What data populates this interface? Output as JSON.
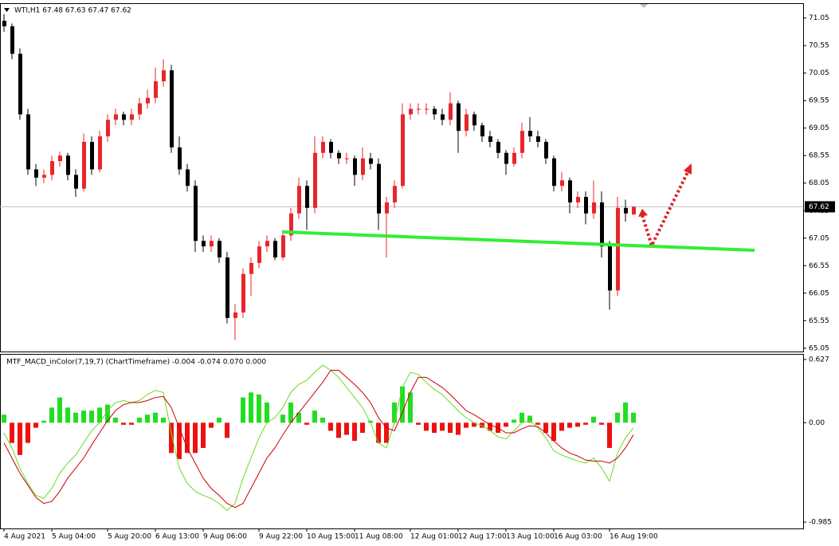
{
  "chart_data": [
    {
      "type": "candlestick",
      "title": "WTI,H1  67.48 67.63 67.47 67.62",
      "bull_color": "#e8262a",
      "bear_color": "#000000",
      "grid": false,
      "ylim": [
        64.99,
        71.32
      ],
      "yticks": [
        65.05,
        65.55,
        66.05,
        66.55,
        67.05,
        67.55,
        68.05,
        68.55,
        69.05,
        69.55,
        70.05,
        70.55,
        71.05
      ],
      "last_price": 67.62,
      "categories": [
        "4 Aug 2021",
        null,
        null,
        null,
        null,
        null,
        "5 Aug 04:00",
        null,
        null,
        null,
        null,
        null,
        null,
        "5 Aug 20:00",
        null,
        null,
        null,
        null,
        null,
        "6 Aug 13:00",
        null,
        null,
        null,
        null,
        null,
        "9 Aug 06:00",
        null,
        null,
        null,
        null,
        null,
        null,
        "9 Aug 22:00",
        null,
        null,
        null,
        null,
        null,
        "10 Aug 15:00",
        null,
        null,
        null,
        null,
        null,
        "11 Aug 08:00",
        null,
        null,
        null,
        null,
        null,
        null,
        "12 Aug 01:00",
        null,
        null,
        null,
        null,
        null,
        "12 Aug 17:00",
        null,
        null,
        null,
        null,
        null,
        "13 Aug 10:00",
        null,
        null,
        null,
        null,
        null,
        "16 Aug 03:00",
        null,
        null,
        null,
        null,
        null,
        null,
        "16 Aug 19:00",
        null,
        null,
        null
      ],
      "ohlc": [
        [
          71.0,
          71.12,
          70.8,
          70.9
        ],
        [
          70.9,
          70.95,
          70.3,
          70.4
        ],
        [
          70.4,
          70.5,
          69.2,
          69.3
        ],
        [
          69.3,
          69.4,
          68.2,
          68.3
        ],
        [
          68.3,
          68.4,
          68.0,
          68.15
        ],
        [
          68.15,
          68.3,
          68.05,
          68.2
        ],
        [
          68.2,
          68.55,
          68.1,
          68.45
        ],
        [
          68.45,
          68.62,
          68.35,
          68.55
        ],
        [
          68.55,
          68.6,
          68.1,
          68.2
        ],
        [
          68.2,
          68.3,
          67.8,
          67.95
        ],
        [
          67.95,
          68.95,
          67.9,
          68.8
        ],
        [
          68.8,
          68.9,
          68.2,
          68.3
        ],
        [
          68.3,
          69.0,
          68.25,
          68.9
        ],
        [
          68.9,
          69.3,
          68.8,
          69.2
        ],
        [
          69.2,
          69.4,
          69.1,
          69.3
        ],
        [
          69.3,
          69.35,
          69.1,
          69.2
        ],
        [
          69.2,
          69.4,
          69.1,
          69.3
        ],
        [
          69.3,
          69.6,
          69.2,
          69.5
        ],
        [
          69.5,
          69.75,
          69.4,
          69.6
        ],
        [
          69.6,
          70.15,
          69.5,
          69.9
        ],
        [
          69.9,
          70.3,
          69.8,
          70.1
        ],
        [
          70.1,
          70.2,
          68.6,
          68.7
        ],
        [
          68.7,
          68.9,
          68.2,
          68.3
        ],
        [
          68.3,
          68.4,
          67.9,
          68.0
        ],
        [
          68.0,
          68.1,
          66.8,
          67.0
        ],
        [
          67.0,
          67.1,
          66.8,
          66.9
        ],
        [
          66.9,
          67.1,
          66.8,
          67.0
        ],
        [
          67.0,
          67.05,
          66.6,
          66.7
        ],
        [
          66.7,
          66.8,
          65.5,
          65.6
        ],
        [
          65.6,
          65.85,
          65.2,
          65.7
        ],
        [
          65.7,
          66.5,
          65.6,
          66.4
        ],
        [
          66.4,
          66.7,
          66.0,
          66.6
        ],
        [
          66.6,
          67.0,
          66.5,
          66.9
        ],
        [
          66.9,
          67.1,
          66.8,
          67.0
        ],
        [
          67.0,
          67.05,
          66.65,
          66.7
        ],
        [
          66.7,
          67.2,
          66.65,
          67.1
        ],
        [
          67.1,
          67.6,
          67.0,
          67.5
        ],
        [
          67.5,
          68.15,
          67.4,
          68.0
        ],
        [
          68.0,
          68.1,
          67.2,
          67.6
        ],
        [
          67.6,
          68.9,
          67.5,
          68.6
        ],
        [
          68.6,
          68.9,
          68.5,
          68.8
        ],
        [
          68.8,
          68.85,
          68.5,
          68.6
        ],
        [
          68.6,
          68.65,
          68.4,
          68.5
        ],
        [
          68.5,
          68.6,
          68.4,
          68.5
        ],
        [
          68.5,
          68.55,
          68.0,
          68.2
        ],
        [
          68.2,
          68.7,
          68.1,
          68.5
        ],
        [
          68.5,
          68.6,
          68.3,
          68.4
        ],
        [
          68.4,
          68.5,
          67.2,
          67.5
        ],
        [
          67.5,
          67.8,
          66.7,
          67.7
        ],
        [
          67.7,
          68.1,
          67.6,
          68.0
        ],
        [
          68.0,
          69.5,
          67.95,
          69.3
        ],
        [
          69.3,
          69.5,
          69.2,
          69.4
        ],
        [
          69.4,
          69.5,
          69.3,
          69.4
        ],
        [
          69.4,
          69.5,
          69.3,
          69.4
        ],
        [
          69.4,
          69.45,
          69.2,
          69.3
        ],
        [
          69.3,
          69.4,
          69.1,
          69.2
        ],
        [
          69.2,
          69.7,
          69.1,
          69.5
        ],
        [
          69.5,
          69.55,
          68.6,
          69.0
        ],
        [
          69.0,
          69.4,
          68.9,
          69.3
        ],
        [
          69.3,
          69.35,
          69.0,
          69.1
        ],
        [
          69.1,
          69.15,
          68.8,
          68.9
        ],
        [
          68.9,
          69.0,
          68.7,
          68.8
        ],
        [
          68.8,
          68.85,
          68.5,
          68.6
        ],
        [
          68.6,
          68.65,
          68.2,
          68.4
        ],
        [
          68.4,
          68.7,
          68.35,
          68.6
        ],
        [
          68.6,
          69.15,
          68.5,
          69.0
        ],
        [
          69.0,
          69.25,
          68.8,
          68.9
        ],
        [
          68.9,
          69.0,
          68.7,
          68.8
        ],
        [
          68.8,
          68.85,
          68.4,
          68.5
        ],
        [
          68.5,
          68.55,
          67.9,
          68.0
        ],
        [
          68.0,
          68.25,
          67.9,
          68.1
        ],
        [
          68.1,
          68.15,
          67.5,
          67.7
        ],
        [
          67.7,
          67.9,
          67.6,
          67.8
        ],
        [
          67.8,
          67.9,
          67.3,
          67.5
        ],
        [
          67.5,
          68.1,
          67.4,
          67.7
        ],
        [
          67.7,
          67.9,
          66.7,
          66.9
        ],
        [
          66.9,
          67.0,
          65.75,
          66.1
        ],
        [
          66.1,
          67.8,
          66.0,
          67.6
        ],
        [
          67.6,
          67.75,
          67.35,
          67.5
        ],
        [
          67.48,
          67.63,
          67.47,
          67.62
        ]
      ]
    },
    {
      "type": "macd",
      "title": "MTF_MACD_inColor(7,19,7) (ChartTimeframe) -0.004 -0.074 0.070 0.000",
      "ylim": [
        -1.048,
        0.682
      ],
      "yticks": [
        -0.985,
        {
          "value": 0,
          "label": "0.00"
        },
        0.627
      ],
      "series": [
        {
          "type": "bar",
          "color": "#22dd22",
          "negative_color": "#ee1111",
          "values": [
            0.08,
            -0.2,
            -0.32,
            -0.2,
            -0.05,
            0.02,
            0.15,
            0.25,
            0.15,
            0.1,
            0.12,
            0.12,
            0.15,
            0.18,
            0.05,
            -0.02,
            -0.02,
            0.05,
            0.08,
            0.1,
            0.05,
            -0.3,
            -0.36,
            -0.3,
            -0.3,
            -0.25,
            -0.05,
            0.05,
            -0.15,
            0.0,
            0.25,
            0.3,
            0.28,
            0.2,
            0.0,
            0.08,
            0.2,
            0.1,
            -0.02,
            0.12,
            0.05,
            -0.08,
            -0.15,
            -0.12,
            -0.18,
            -0.1,
            0.02,
            -0.2,
            -0.2,
            0.2,
            0.36,
            0.3,
            -0.02,
            -0.08,
            -0.1,
            -0.08,
            -0.1,
            -0.12,
            -0.05,
            -0.04,
            -0.05,
            -0.08,
            -0.1,
            -0.04,
            0.03,
            0.1,
            0.07,
            -0.02,
            -0.1,
            -0.18,
            -0.08,
            -0.05,
            -0.04,
            -0.02,
            0.06,
            -0.02,
            -0.25,
            0.1,
            0.2,
            0.1
          ]
        },
        {
          "type": "line",
          "color": "#66dd22",
          "values": [
            -0.1,
            -0.25,
            -0.45,
            -0.6,
            -0.72,
            -0.75,
            -0.65,
            -0.5,
            -0.4,
            -0.32,
            -0.2,
            -0.08,
            0.0,
            0.12,
            0.2,
            0.22,
            0.2,
            0.22,
            0.28,
            0.32,
            0.3,
            -0.1,
            -0.45,
            -0.6,
            -0.68,
            -0.72,
            -0.75,
            -0.8,
            -0.87,
            -0.8,
            -0.55,
            -0.35,
            -0.15,
            0.0,
            0.05,
            0.15,
            0.3,
            0.38,
            0.42,
            0.5,
            0.57,
            0.52,
            0.45,
            0.35,
            0.25,
            0.15,
            0.0,
            -0.2,
            -0.25,
            0.0,
            0.35,
            0.5,
            0.48,
            0.4,
            0.33,
            0.28,
            0.2,
            0.12,
            0.05,
            0.0,
            -0.03,
            -0.08,
            -0.14,
            -0.16,
            -0.08,
            0.0,
            0.02,
            -0.05,
            -0.15,
            -0.28,
            -0.32,
            -0.35,
            -0.38,
            -0.4,
            -0.35,
            -0.45,
            -0.58,
            -0.3,
            -0.15,
            -0.05
          ]
        },
        {
          "type": "line",
          "color": "#cc0000",
          "values": [
            -0.2,
            -0.35,
            -0.5,
            -0.62,
            -0.74,
            -0.8,
            -0.78,
            -0.68,
            -0.55,
            -0.45,
            -0.35,
            -0.22,
            -0.1,
            0.02,
            0.12,
            0.18,
            0.2,
            0.2,
            0.22,
            0.25,
            0.26,
            0.15,
            -0.05,
            -0.25,
            -0.4,
            -0.55,
            -0.65,
            -0.72,
            -0.8,
            -0.84,
            -0.8,
            -0.65,
            -0.5,
            -0.35,
            -0.25,
            -0.12,
            0.0,
            0.1,
            0.2,
            0.3,
            0.4,
            0.52,
            0.52,
            0.45,
            0.38,
            0.3,
            0.2,
            0.05,
            -0.05,
            -0.08,
            0.1,
            0.3,
            0.45,
            0.45,
            0.4,
            0.35,
            0.28,
            0.2,
            0.12,
            0.08,
            0.03,
            -0.02,
            -0.05,
            -0.1,
            -0.1,
            -0.06,
            -0.03,
            -0.04,
            -0.1,
            -0.18,
            -0.25,
            -0.3,
            -0.33,
            -0.37,
            -0.38,
            -0.38,
            -0.4,
            -0.35,
            -0.25,
            -0.12
          ]
        }
      ]
    }
  ]
}
